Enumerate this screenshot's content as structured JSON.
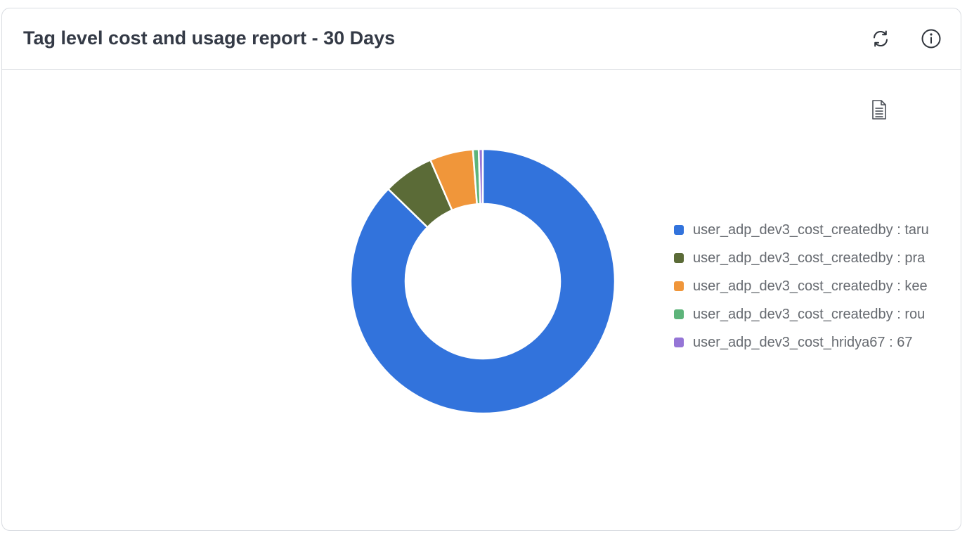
{
  "header": {
    "title": "Tag level cost and usage report - 30 Days",
    "icons": {
      "refresh": "refresh-icon",
      "info": "info-icon",
      "export": "document-icon"
    }
  },
  "chart_data": {
    "type": "pie",
    "variant": "donut",
    "legend_placement": "right",
    "slices": [
      {
        "label": "user_adp_dev3_cost_createdby : taru",
        "value": 87.3,
        "color": "#3273dc"
      },
      {
        "label": "user_adp_dev3_cost_createdby : pra",
        "value": 6.2,
        "color": "#5b6b37"
      },
      {
        "label": "user_adp_dev3_cost_createdby : kee",
        "value": 5.3,
        "color": "#f0963a"
      },
      {
        "label": "user_adp_dev3_cost_createdby : rou",
        "value": 0.7,
        "color": "#5db47a"
      },
      {
        "label": "user_adp_dev3_cost_hridya67 : 67",
        "value": 0.5,
        "color": "#9575d6"
      }
    ]
  }
}
